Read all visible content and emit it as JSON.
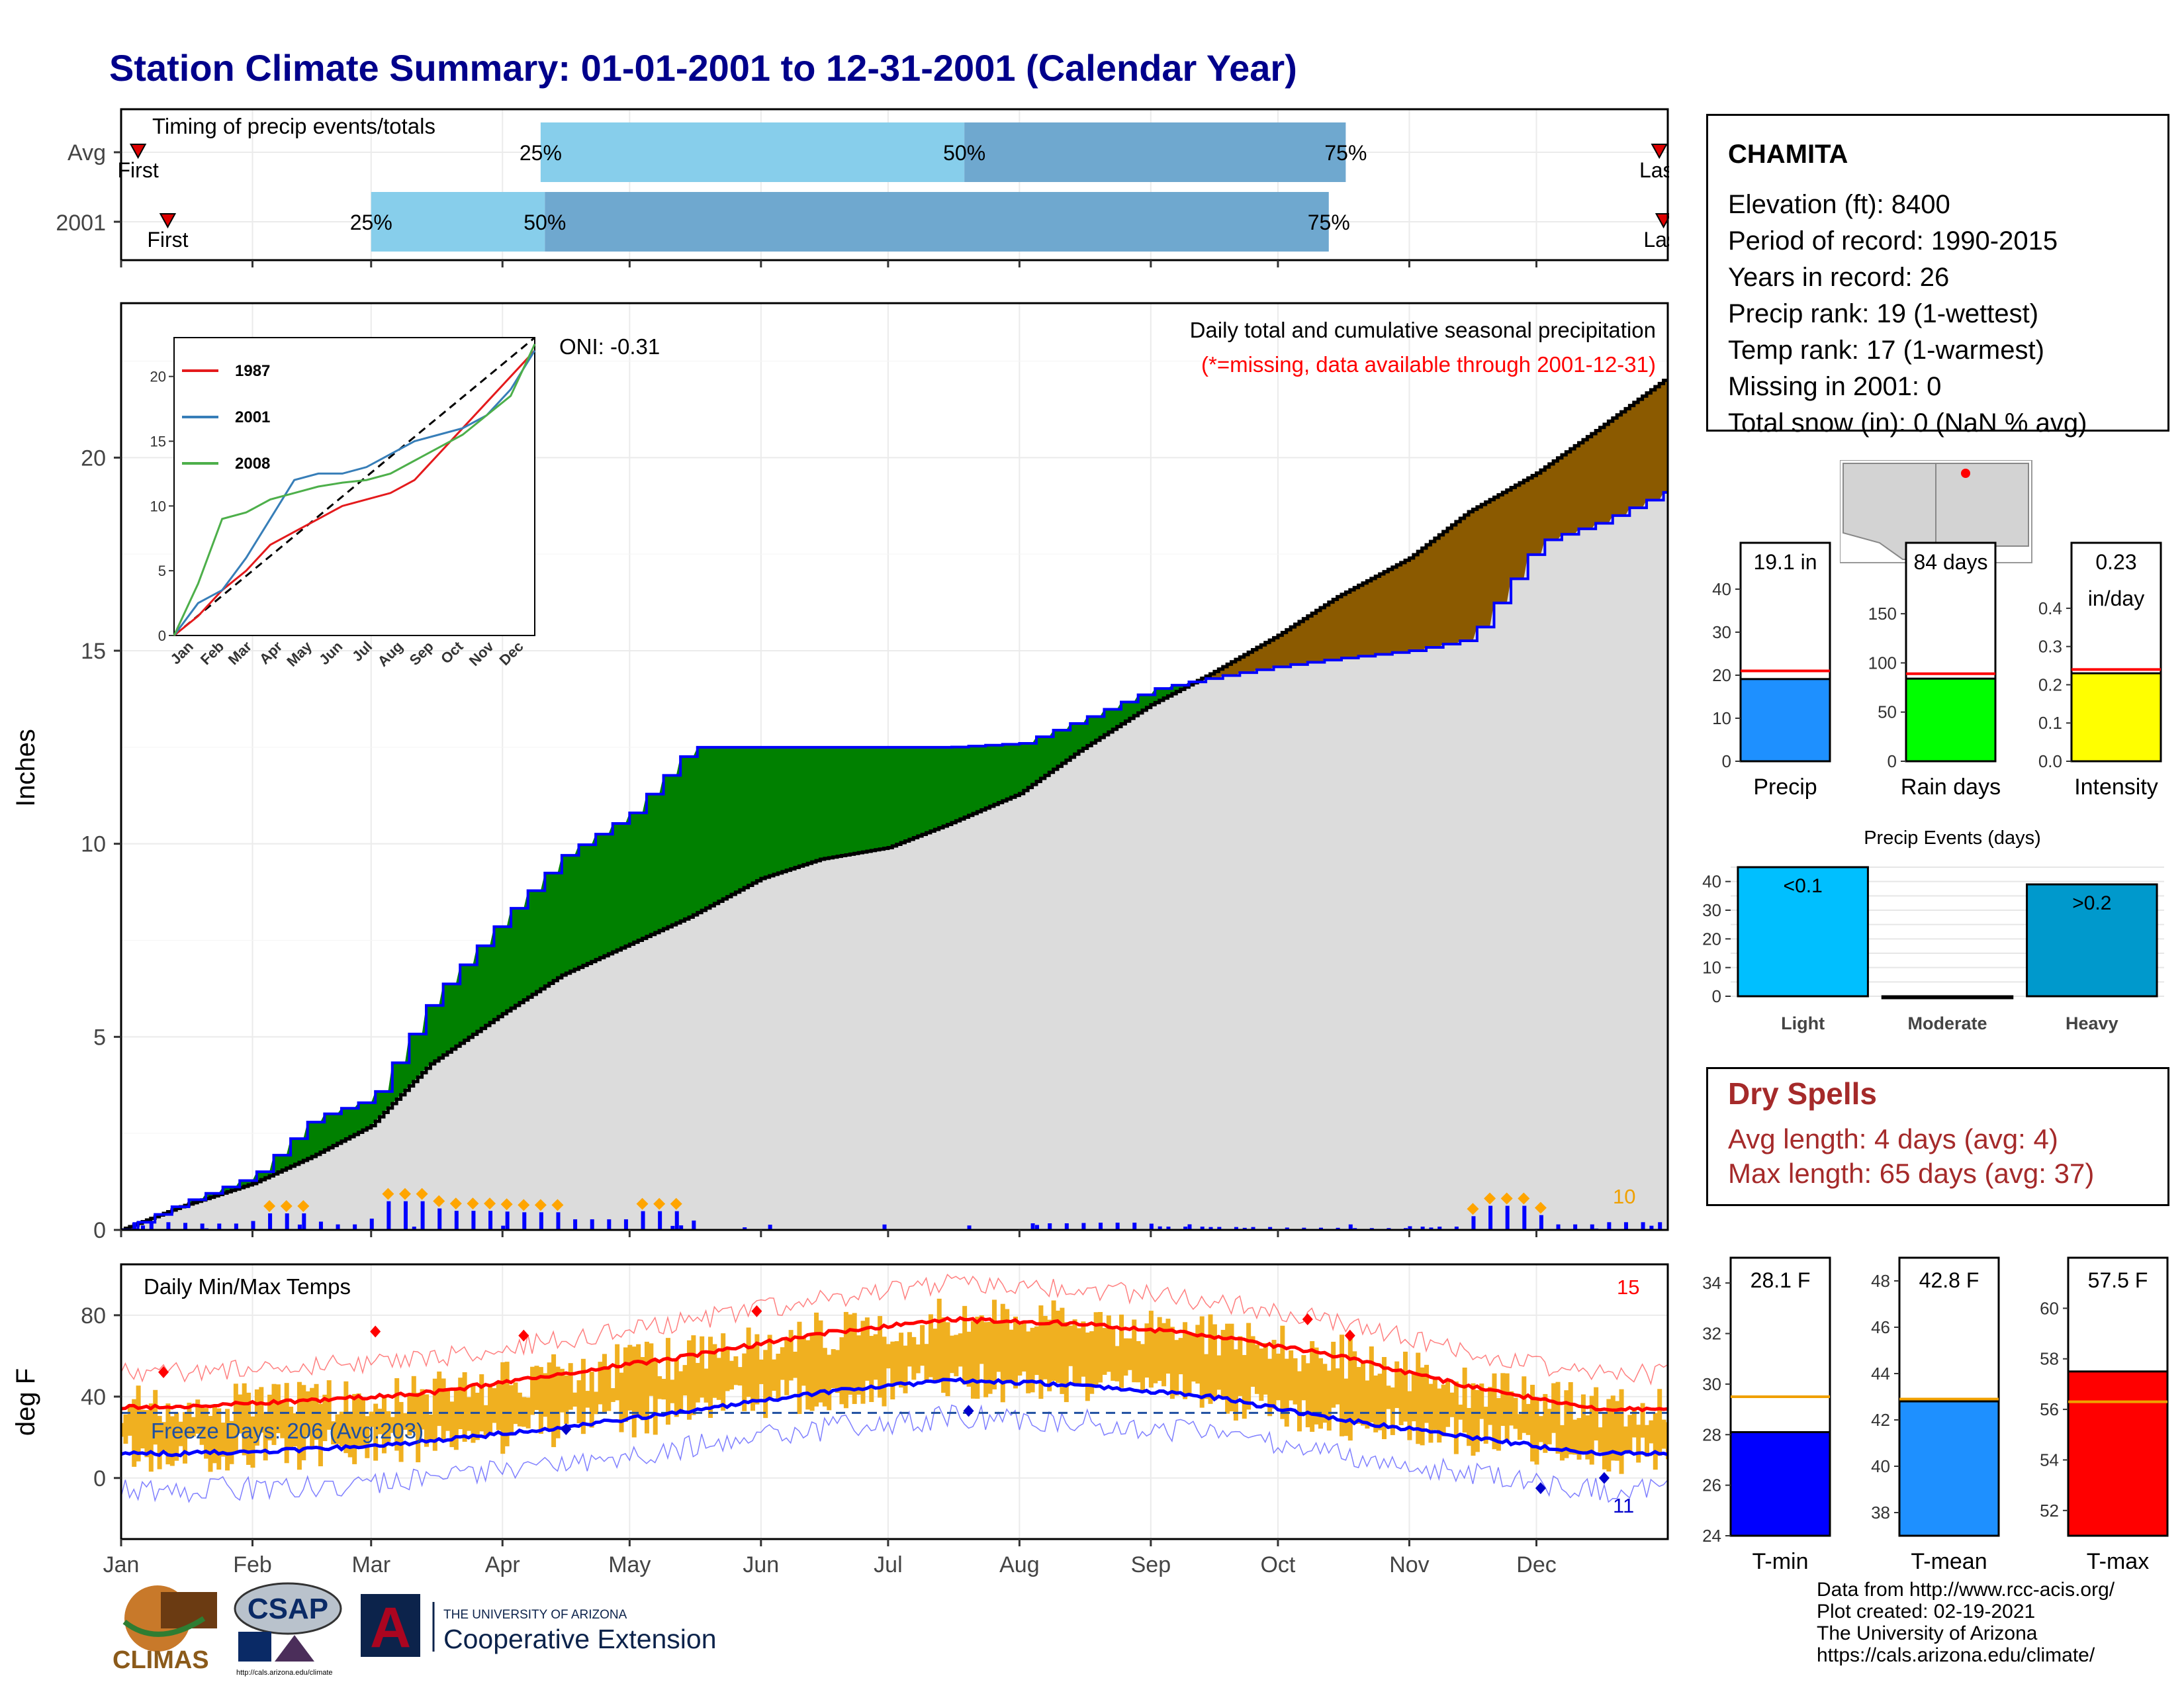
{
  "title": "Station Climate Summary: 01-01-2001 to 12-31-2001 (Calendar Year)",
  "colors": {
    "title": "#00008b",
    "accent_red": "#ff0000",
    "accent_blue": "#0000ff",
    "green_fill": "#008000",
    "brown_fill": "#8b5a00",
    "gray_fill": "#dcdcdc",
    "light_blue": "#87ceeb",
    "mid_blue": "#6fa8cf",
    "orange": "#f0b020",
    "dry_spell": "#a52a2a"
  },
  "timing": {
    "title": "Timing of precip events/totals",
    "rows": [
      {
        "label": "Avg",
        "first_label": "First",
        "last_label": "Last",
        "p25_label": "25%",
        "p50_label": "50%",
        "p75_label": "75%"
      },
      {
        "label": "2001",
        "first_label": "First",
        "last_label": "Last",
        "p25_label": "25%",
        "p50_label": "50%",
        "p75_label": "75%"
      }
    ]
  },
  "precip": {
    "ylabel": "Inches",
    "oni": "ONI: -0.31",
    "subtitle": "Daily total and cumulative seasonal precipitation",
    "missing_note": "(*=missing, data available through 2001-12-31)",
    "count_label": "10",
    "inset": {
      "series_names": [
        "1987",
        "2001",
        "2008"
      ],
      "series_colors": [
        "#e41a1c",
        "#377eb8",
        "#4daf4a"
      ],
      "x_ticks": [
        "Jan",
        "Feb",
        "Mar",
        "Apr",
        "May",
        "Jun",
        "Jul",
        "Aug",
        "Sep",
        "Oct",
        "Nov",
        "Dec"
      ],
      "y_ticks": [
        "0",
        "5",
        "10",
        "15",
        "20"
      ]
    }
  },
  "temps": {
    "title": "Daily Min/Max Temps",
    "ylabel": "deg F",
    "freeze": "Freeze Days: 206 (Avg:203)",
    "max_count": "15",
    "min_count": "11"
  },
  "months": [
    "Jan",
    "Feb",
    "Mar",
    "Apr",
    "May",
    "Jun",
    "Jul",
    "Aug",
    "Sep",
    "Oct",
    "Nov",
    "Dec"
  ],
  "station": {
    "name": "CHAMITA",
    "lines": [
      "Elevation (ft): 8400",
      "Period of record: 1990-2015",
      "Years in record: 26",
      "Precip rank: 19 (1-wettest)",
      "Temp rank: 17 (1-warmest)",
      "Missing in 2001: 0",
      "Total snow (in): 0 (NaN % avg)"
    ]
  },
  "summary_bars": [
    {
      "label": "Precip",
      "value_text": "19.1 in",
      "value": 19.1,
      "avg": 21,
      "ymax": 40,
      "ticks": [
        "0",
        "10",
        "20",
        "30",
        "40"
      ],
      "color": "#1e90ff"
    },
    {
      "label": "Rain days",
      "value_text": "84 days",
      "value": 84,
      "avg": 89,
      "ymax": 175,
      "ticks": [
        "0",
        "50",
        "100",
        "150"
      ],
      "color": "#00ff00"
    },
    {
      "label": "Intensity",
      "value_text": "0.23\nin/day",
      "value": 0.23,
      "avg": 0.24,
      "ymax": 0.45,
      "ticks": [
        "0.0",
        "0.1",
        "0.2",
        "0.3",
        "0.4"
      ],
      "color": "#ffff00"
    }
  ],
  "precip_events": {
    "title": "Precip Events (days)",
    "categories": [
      "Light",
      "Moderate",
      "Heavy"
    ],
    "values": [
      45,
      0,
      39
    ],
    "value_labels": [
      "<0.1",
      "",
      ">0.2"
    ],
    "colors": [
      "#00bfff",
      "#1e90ff",
      "#0099cc"
    ],
    "ticks": [
      "0",
      "10",
      "20",
      "30",
      "40"
    ]
  },
  "dry_spells": {
    "title": "Dry Spells",
    "avg": "Avg length: 4 days (avg: 4)",
    "max": "Max length: 65 days (avg: 37)"
  },
  "temp_bars": [
    {
      "label": "T-min",
      "value_text": "28.1 F",
      "value": 28.1,
      "avg": 29.5,
      "ymin": 24,
      "ymax": 35,
      "ticks": [
        "24",
        "26",
        "28",
        "30",
        "32",
        "34"
      ],
      "color": "#0000ff"
    },
    {
      "label": "T-mean",
      "value_text": "42.8 F",
      "value": 42.8,
      "avg": 42.9,
      "ymin": 37,
      "ymax": 49,
      "ticks": [
        "38",
        "40",
        "42",
        "44",
        "46",
        "48"
      ],
      "color": "#1e90ff"
    },
    {
      "label": "T-max",
      "value_text": "57.5 F",
      "value": 57.5,
      "avg": 56.3,
      "ymin": 51,
      "ymax": 62,
      "ticks": [
        "52",
        "54",
        "56",
        "58",
        "60"
      ],
      "color": "#ff0000"
    }
  ],
  "logos": {
    "climas": "CLIMAS",
    "csap": "CSAP",
    "csap_url": "http://cals.arizona.edu/climate",
    "ua_small": "THE UNIVERSITY OF ARIZONA",
    "ua_big": "Cooperative Extension"
  },
  "credits": [
    "Data from http://www.rcc-acis.org/",
    "Plot created: 02-19-2021",
    "The University of Arizona",
    "https://cals.arizona.edu/climate/"
  ],
  "chart_data": [
    {
      "type": "bar",
      "title": "Timing of precip events/totals",
      "categories": [
        "Avg",
        "2001"
      ],
      "series": [
        {
          "name": "25%",
          "values": [
            "2001-04-10",
            "2001-03-01"
          ]
        },
        {
          "name": "50%",
          "values": [
            "2001-07-19",
            "2001-04-11"
          ]
        },
        {
          "name": "75%",
          "values": [
            "2001-10-17",
            "2001-10-13"
          ]
        },
        {
          "name": "First",
          "values": [
            "2001-01-05",
            "2001-01-12"
          ]
        },
        {
          "name": "Last",
          "values": [
            "2001-12-30",
            "2001-12-31"
          ]
        }
      ]
    },
    {
      "type": "area",
      "title": "Daily total and cumulative seasonal precipitation",
      "ylabel": "Inches",
      "ylim": [
        0,
        24
      ],
      "x": [
        "2001-01-01",
        "2001-01-15",
        "2001-02-01",
        "2001-02-15",
        "2001-03-01",
        "2001-03-15",
        "2001-04-01",
        "2001-04-15",
        "2001-05-01",
        "2001-05-15",
        "2001-06-01",
        "2001-06-15",
        "2001-07-01",
        "2001-07-15",
        "2001-08-01",
        "2001-08-15",
        "2001-09-01",
        "2001-09-15",
        "2001-10-01",
        "2001-10-15",
        "2001-11-01",
        "2001-11-15",
        "2001-12-01",
        "2001-12-15",
        "2001-12-31"
      ],
      "series": [
        {
          "name": "2001",
          "values": [
            0,
            0.7,
            1.4,
            2.9,
            3.4,
            6.0,
            8.1,
            9.7,
            10.8,
            12.5,
            12.5,
            12.5,
            12.5,
            12.5,
            12.6,
            13.2,
            14.0,
            14.3,
            14.6,
            14.8,
            15.0,
            15.3,
            17.8,
            18.3,
            19.1
          ]
        },
        {
          "name": "Avg",
          "values": [
            0,
            0.6,
            1.2,
            1.9,
            2.7,
            4.3,
            5.6,
            6.6,
            7.4,
            8.1,
            9.1,
            9.6,
            9.9,
            10.5,
            11.3,
            12.4,
            13.6,
            14.4,
            15.4,
            16.4,
            17.4,
            18.6,
            19.6,
            20.7,
            22.0
          ]
        }
      ]
    },
    {
      "type": "line",
      "title": "Daily Min/Max Temps",
      "ylabel": "deg F",
      "ylim": [
        -30,
        105
      ],
      "x": [
        "2001-01-15",
        "2001-02-15",
        "2001-03-15",
        "2001-04-15",
        "2001-05-15",
        "2001-06-15",
        "2001-07-15",
        "2001-08-15",
        "2001-09-15",
        "2001-10-15",
        "2001-11-15",
        "2001-12-15"
      ],
      "series": [
        {
          "name": "Avg max",
          "values": [
            35,
            38,
            42,
            51,
            60,
            71,
            78,
            76,
            70,
            60,
            45,
            34
          ]
        },
        {
          "name": "Avg min",
          "values": [
            12,
            14,
            18,
            25,
            33,
            42,
            48,
            46,
            40,
            29,
            20,
            12
          ]
        }
      ]
    },
    {
      "type": "bar",
      "title": "Precip Events (days)",
      "categories": [
        "Light",
        "Moderate",
        "Heavy"
      ],
      "values": [
        45,
        0,
        39
      ]
    },
    {
      "type": "bar",
      "categories": [
        "Precip",
        "Rain days",
        "Intensity"
      ],
      "values": [
        19.1,
        84,
        0.23
      ]
    },
    {
      "type": "bar",
      "categories": [
        "T-min",
        "T-mean",
        "T-max"
      ],
      "values": [
        28.1,
        42.8,
        57.5
      ]
    }
  ]
}
